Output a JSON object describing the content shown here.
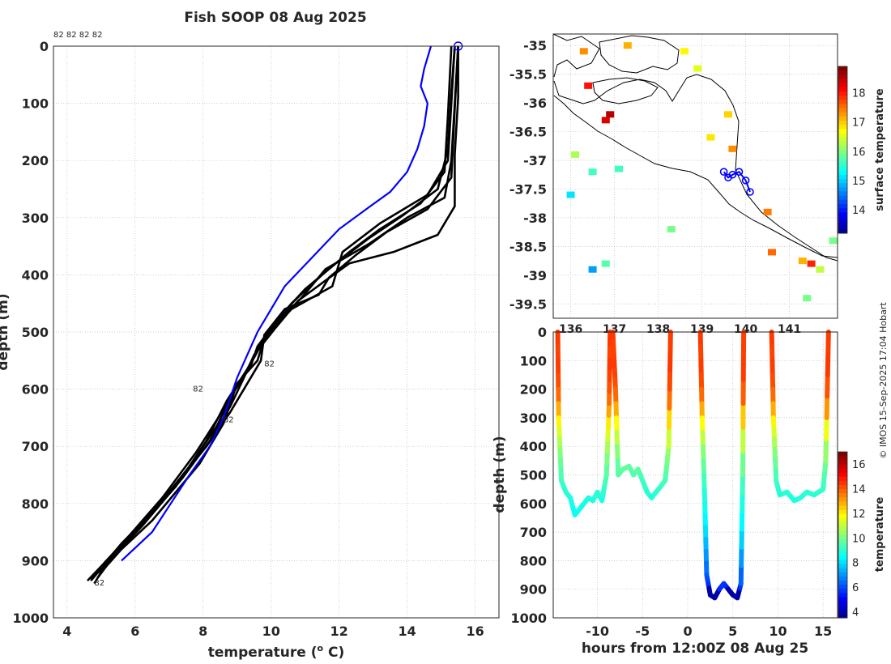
{
  "title": "Fish SOOP 08 Aug 2025",
  "credit": "© IMOS 15-Sep-2025 17:04 Hobart",
  "chart_data": [
    {
      "name": "profiles",
      "type": "line",
      "xlabel": "temperature (",
      "xlabel_sup": "o",
      "xlabel_end": " C)",
      "ylabel": "depth (m)",
      "xlim": [
        3.6,
        16.7
      ],
      "ylim": [
        1000,
        0
      ],
      "xticks": [
        4,
        6,
        8,
        10,
        12,
        14,
        16
      ],
      "yticks": [
        0,
        100,
        200,
        300,
        400,
        500,
        600,
        700,
        800,
        900,
        1000
      ],
      "top_labels": "82 82 82 82",
      "annotations": [
        {
          "text": "82",
          "x": 8.6,
          "y": 658
        },
        {
          "text": "82",
          "x": 4.8,
          "y": 943
        },
        {
          "text": "82",
          "x": 7.7,
          "y": 604
        },
        {
          "text": "82",
          "x": 9.8,
          "y": 560
        }
      ],
      "climatology": {
        "color": "#0000ff",
        "points": [
          [
            14.7,
            0
          ],
          [
            14.5,
            40
          ],
          [
            14.4,
            70
          ],
          [
            14.6,
            100
          ],
          [
            14.5,
            140
          ],
          [
            14.3,
            180
          ],
          [
            14.0,
            220
          ],
          [
            13.5,
            255
          ],
          [
            12.8,
            285
          ],
          [
            12.0,
            320
          ],
          [
            11.2,
            370
          ],
          [
            10.4,
            420
          ],
          [
            9.6,
            500
          ],
          [
            9.0,
            580
          ],
          [
            8.6,
            650
          ],
          [
            8.2,
            700
          ],
          [
            7.6,
            750
          ],
          [
            6.5,
            850
          ],
          [
            5.6,
            900
          ]
        ],
        "marker": [
          15.5,
          0
        ]
      },
      "profiles": [
        [
          [
            15.4,
            0
          ],
          [
            15.3,
            100
          ],
          [
            15.2,
            200
          ],
          [
            14.6,
            260
          ],
          [
            13.2,
            310
          ],
          [
            12.1,
            360
          ],
          [
            11.8,
            420
          ],
          [
            10.6,
            460
          ],
          [
            9.8,
            510
          ],
          [
            9.6,
            550
          ],
          [
            9.0,
            590
          ],
          [
            8.6,
            660
          ],
          [
            7.9,
            730
          ],
          [
            6.5,
            830
          ],
          [
            5.6,
            880
          ],
          [
            5.0,
            920
          ],
          [
            4.8,
            940
          ]
        ],
        [
          [
            15.5,
            0
          ],
          [
            15.4,
            100
          ],
          [
            15.3,
            200
          ],
          [
            15.1,
            265
          ],
          [
            14.0,
            300
          ],
          [
            12.9,
            345
          ],
          [
            11.6,
            390
          ],
          [
            10.9,
            440
          ],
          [
            10.2,
            480
          ],
          [
            9.7,
            520
          ],
          [
            9.3,
            565
          ],
          [
            8.7,
            620
          ],
          [
            8.1,
            690
          ],
          [
            7.2,
            770
          ],
          [
            6.0,
            850
          ],
          [
            5.2,
            900
          ],
          [
            4.7,
            935
          ]
        ],
        [
          [
            15.5,
            0
          ],
          [
            15.5,
            90
          ],
          [
            15.4,
            190
          ],
          [
            15.4,
            280
          ],
          [
            14.9,
            330
          ],
          [
            13.6,
            360
          ],
          [
            12.3,
            380
          ],
          [
            11.6,
            410
          ],
          [
            10.8,
            445
          ],
          [
            10.1,
            495
          ],
          [
            9.5,
            540
          ],
          [
            9.2,
            580
          ],
          [
            8.8,
            630
          ],
          [
            8.2,
            690
          ],
          [
            7.4,
            755
          ],
          [
            6.2,
            840
          ],
          [
            5.4,
            890
          ],
          [
            4.9,
            930
          ]
        ],
        [
          [
            15.3,
            0
          ],
          [
            15.2,
            120
          ],
          [
            15.1,
            220
          ],
          [
            14.4,
            275
          ],
          [
            13.2,
            320
          ],
          [
            12.3,
            360
          ],
          [
            11.5,
            400
          ],
          [
            10.6,
            450
          ],
          [
            9.9,
            500
          ],
          [
            9.5,
            545
          ],
          [
            9.1,
            585
          ],
          [
            8.5,
            645
          ],
          [
            7.8,
            710
          ],
          [
            6.8,
            790
          ],
          [
            5.7,
            865
          ],
          [
            5.0,
            910
          ],
          [
            4.6,
            935
          ]
        ],
        [
          [
            15.4,
            0
          ],
          [
            15.3,
            80
          ],
          [
            15.2,
            180
          ],
          [
            14.9,
            250
          ],
          [
            13.9,
            295
          ],
          [
            12.9,
            335
          ],
          [
            11.9,
            380
          ],
          [
            11.0,
            425
          ],
          [
            10.3,
            470
          ],
          [
            9.6,
            525
          ],
          [
            9.4,
            560
          ],
          [
            8.9,
            605
          ],
          [
            8.4,
            665
          ],
          [
            7.6,
            735
          ],
          [
            6.6,
            810
          ],
          [
            5.6,
            870
          ],
          [
            4.9,
            920
          ]
        ],
        [
          [
            15.5,
            0
          ],
          [
            15.4,
            110
          ],
          [
            15.3,
            230
          ],
          [
            14.6,
            285
          ],
          [
            13.4,
            325
          ],
          [
            12.5,
            365
          ],
          [
            11.7,
            405
          ],
          [
            11.4,
            435
          ],
          [
            10.4,
            460
          ],
          [
            9.8,
            505
          ],
          [
            9.7,
            550
          ],
          [
            9.3,
            590
          ],
          [
            8.8,
            640
          ],
          [
            8.1,
            700
          ],
          [
            7.0,
            780
          ],
          [
            6.0,
            850
          ],
          [
            5.2,
            905
          ],
          [
            4.7,
            932
          ]
        ]
      ]
    },
    {
      "name": "map",
      "type": "heatmap",
      "xlim": [
        135.6,
        142.1
      ],
      "ylim": [
        -39.75,
        -34.8
      ],
      "xticks": [
        136,
        137,
        138,
        139,
        140,
        141
      ],
      "xtick_labels": [
        "136",
        "137",
        "138",
        "139",
        "140",
        "141"
      ],
      "yticks": [
        -35,
        -35.5,
        -36,
        -36.5,
        -37,
        -37.5,
        -38,
        -38.5,
        -39,
        -39.5
      ],
      "ytick_labels": [
        "-35",
        "-35.5",
        "-36",
        "-36.5",
        "-37",
        "-37.5",
        "-38",
        "-38.5",
        "-39",
        "-39.5"
      ],
      "colorbar_label": "surface temperature",
      "colorbar_range": [
        13.2,
        18.9
      ],
      "colorbar_ticks": [
        14,
        15,
        16,
        17,
        18
      ],
      "track": [
        [
          139.5,
          -37.2
        ],
        [
          139.6,
          -37.3
        ],
        [
          139.7,
          -37.25
        ],
        [
          139.85,
          -37.2
        ],
        [
          140.0,
          -37.35
        ],
        [
          140.1,
          -37.55
        ]
      ],
      "patches": [
        {
          "lon": 136.9,
          "lat": -36.2,
          "t": 18.6
        },
        {
          "lon": 136.8,
          "lat": -36.3,
          "t": 18.4
        },
        {
          "lon": 136.3,
          "lat": -35.1,
          "t": 17.4
        },
        {
          "lon": 137.3,
          "lat": -35.0,
          "t": 17.2
        },
        {
          "lon": 136.4,
          "lat": -35.7,
          "t": 18.1
        },
        {
          "lon": 138.6,
          "lat": -35.1,
          "t": 16.8
        },
        {
          "lon": 138.9,
          "lat": -35.4,
          "t": 16.6
        },
        {
          "lon": 139.6,
          "lat": -36.2,
          "t": 17.0
        },
        {
          "lon": 139.7,
          "lat": -36.8,
          "t": 17.4
        },
        {
          "lon": 139.2,
          "lat": -36.6,
          "t": 16.9
        },
        {
          "lon": 136.0,
          "lat": -37.6,
          "t": 15.2
        },
        {
          "lon": 136.1,
          "lat": -36.9,
          "t": 16.3
        },
        {
          "lon": 136.5,
          "lat": -37.2,
          "t": 15.7
        },
        {
          "lon": 137.1,
          "lat": -37.15,
          "t": 15.7
        },
        {
          "lon": 136.5,
          "lat": -38.9,
          "t": 14.8
        },
        {
          "lon": 136.8,
          "lat": -38.8,
          "t": 15.8
        },
        {
          "lon": 138.3,
          "lat": -38.2,
          "t": 16.0
        },
        {
          "lon": 140.5,
          "lat": -37.9,
          "t": 17.5
        },
        {
          "lon": 141.4,
          "lat": -39.4,
          "t": 16.0
        },
        {
          "lon": 141.7,
          "lat": -38.9,
          "t": 16.4
        },
        {
          "lon": 141.3,
          "lat": -38.75,
          "t": 17.2
        },
        {
          "lon": 142.0,
          "lat": -38.4,
          "t": 16.0
        },
        {
          "lon": 140.6,
          "lat": -38.6,
          "t": 17.6
        },
        {
          "lon": 141.5,
          "lat": -38.8,
          "t": 18.0
        }
      ]
    },
    {
      "name": "section",
      "type": "scatter",
      "xlabel": "hours from 12:00Z 08 Aug 25",
      "ylabel": "depth (m)",
      "xlim": [
        -14.9,
        16.6
      ],
      "ylim": [
        1000,
        0
      ],
      "xticks": [
        -10,
        -5,
        0,
        5,
        10,
        15
      ],
      "yticks": [
        0,
        100,
        200,
        300,
        400,
        500,
        600,
        700,
        800,
        900,
        1000
      ],
      "colorbar_label": "temperature",
      "colorbar_range": [
        3.5,
        17
      ],
      "colorbar_ticks": [
        4,
        6,
        8,
        10,
        12,
        14,
        16
      ],
      "casts": [
        [
          [
            -14.4,
            0
          ],
          [
            -14.3,
            300
          ],
          [
            -14.0,
            520
          ],
          [
            -13.5,
            560
          ],
          [
            -13.0,
            580
          ],
          [
            -12.5,
            640
          ],
          [
            -12.0,
            620
          ],
          [
            -11.5,
            600
          ],
          [
            -11.0,
            580
          ],
          [
            -10.5,
            590
          ],
          [
            -10.0,
            560
          ],
          [
            -9.5,
            590
          ],
          [
            -9.0,
            500
          ],
          [
            -8.7,
            250
          ],
          [
            -8.6,
            0
          ]
        ],
        [
          [
            -8.3,
            0
          ],
          [
            -8.0,
            200
          ],
          [
            -7.7,
            500
          ],
          [
            -7.2,
            480
          ],
          [
            -6.5,
            470
          ],
          [
            -6.0,
            500
          ],
          [
            -5.5,
            480
          ],
          [
            -5.0,
            520
          ],
          [
            -4.5,
            560
          ],
          [
            -4.0,
            580
          ],
          [
            -3.5,
            560
          ],
          [
            -2.5,
            520
          ],
          [
            -2.1,
            400
          ],
          [
            -1.9,
            0
          ]
        ],
        [
          [
            1.4,
            0
          ],
          [
            1.6,
            300
          ],
          [
            1.9,
            600
          ],
          [
            2.1,
            850
          ],
          [
            2.5,
            920
          ],
          [
            3.0,
            930
          ],
          [
            3.5,
            900
          ],
          [
            4.0,
            880
          ],
          [
            4.5,
            900
          ],
          [
            5.0,
            920
          ],
          [
            5.5,
            930
          ],
          [
            5.9,
            880
          ],
          [
            6.1,
            500
          ],
          [
            6.2,
            0
          ]
        ],
        [
          [
            9.3,
            0
          ],
          [
            9.5,
            300
          ],
          [
            9.8,
            520
          ],
          [
            10.2,
            570
          ],
          [
            11.0,
            560
          ],
          [
            11.8,
            590
          ],
          [
            12.5,
            580
          ],
          [
            13.2,
            560
          ],
          [
            14.0,
            570
          ],
          [
            14.5,
            560
          ],
          [
            15.0,
            550
          ],
          [
            15.3,
            450
          ],
          [
            15.6,
            0
          ]
        ]
      ]
    }
  ]
}
